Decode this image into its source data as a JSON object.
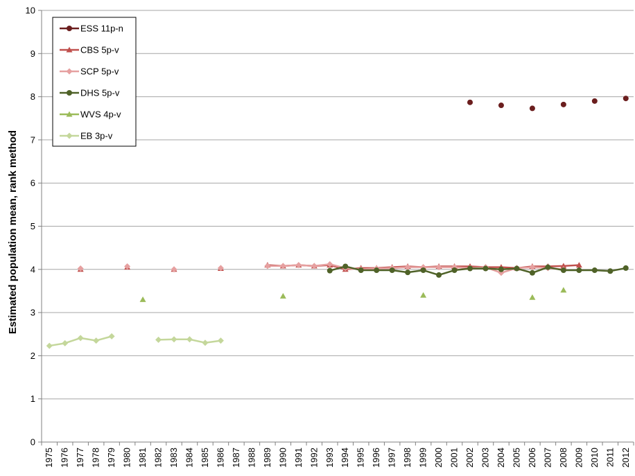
{
  "chart_data": {
    "type": "line",
    "title": "",
    "xlabel": "",
    "ylabel": "Estimated population mean, rank method",
    "ylim": [
      0,
      10
    ],
    "yticks": [
      "0",
      "1",
      "2",
      "3",
      "4",
      "5",
      "6",
      "7",
      "8",
      "9",
      "10"
    ],
    "grid": "horizontal",
    "legend_position": "top-left",
    "categories": [
      "1975",
      "1976",
      "1977",
      "1978",
      "1979",
      "1980",
      "1981",
      "1982",
      "1983",
      "1984",
      "1985",
      "1986",
      "1987",
      "1988",
      "1989",
      "1990",
      "1991",
      "1992",
      "1993",
      "1994",
      "1995",
      "1996",
      "1997",
      "1998",
      "1999",
      "2000",
      "2001",
      "2002",
      "2003",
      "2004",
      "2005",
      "2006",
      "2007",
      "2008",
      "2009",
      "2010",
      "2011",
      "2012"
    ],
    "series": [
      {
        "name": "ESS 11p-n",
        "color": "#6b1e1e",
        "marker": "circle",
        "points": [
          [
            2002,
            7.87
          ],
          [
            2004,
            7.8
          ],
          [
            2006,
            7.73
          ],
          [
            2008,
            7.82
          ],
          [
            2010,
            7.9
          ],
          [
            2012,
            7.96
          ]
        ]
      },
      {
        "name": "CBS 5p-v",
        "color": "#c0504d",
        "marker": "triangle",
        "points": [
          [
            1977,
            4.0
          ],
          [
            1980,
            4.05
          ],
          [
            1983,
            4.0
          ],
          [
            1986,
            4.02
          ],
          [
            1989,
            4.1
          ],
          [
            1990,
            4.08
          ],
          [
            1991,
            4.1
          ],
          [
            1992,
            4.08
          ],
          [
            1993,
            4.1
          ],
          [
            1994,
            4.0
          ],
          [
            1995,
            4.03
          ],
          [
            1996,
            4.03
          ],
          [
            1997,
            4.05
          ],
          [
            1998,
            4.07
          ],
          [
            1999,
            4.05
          ],
          [
            2000,
            4.07
          ],
          [
            2001,
            4.07
          ],
          [
            2002,
            4.07
          ],
          [
            2003,
            4.05
          ],
          [
            2004,
            4.05
          ],
          [
            2005,
            4.03
          ],
          [
            2006,
            4.07
          ],
          [
            2007,
            4.07
          ],
          [
            2008,
            4.08
          ],
          [
            2009,
            4.1
          ]
        ]
      },
      {
        "name": "SCP 5p-v",
        "color": "#e6a0a0",
        "marker": "diamond",
        "points": [
          [
            1977,
            4.02
          ],
          [
            1980,
            4.07
          ],
          [
            1983,
            4.0
          ],
          [
            1986,
            4.03
          ],
          [
            1989,
            4.08
          ],
          [
            1990,
            4.08
          ],
          [
            1991,
            4.1
          ],
          [
            1992,
            4.08
          ],
          [
            1993,
            4.12
          ],
          [
            1994,
            4.03
          ],
          [
            1995,
            4.0
          ],
          [
            1996,
            4.02
          ],
          [
            1997,
            4.03
          ],
          [
            1998,
            4.05
          ],
          [
            1999,
            4.05
          ],
          [
            2000,
            4.05
          ],
          [
            2001,
            4.05
          ],
          [
            2002,
            4.03
          ],
          [
            2003,
            4.05
          ],
          [
            2004,
            3.92
          ],
          [
            2005,
            4.03
          ],
          [
            2006,
            4.05
          ],
          [
            2007,
            4.03
          ],
          [
            2008,
            4.0
          ]
        ]
      },
      {
        "name": "DHS 5p-v",
        "color": "#4f6228",
        "marker": "circle",
        "points": [
          [
            1993,
            3.97
          ],
          [
            1994,
            4.07
          ],
          [
            1995,
            3.98
          ],
          [
            1996,
            3.98
          ],
          [
            1997,
            3.98
          ],
          [
            1998,
            3.93
          ],
          [
            1999,
            3.98
          ],
          [
            2000,
            3.87
          ],
          [
            2001,
            3.98
          ],
          [
            2002,
            4.02
          ],
          [
            2003,
            4.02
          ],
          [
            2004,
            4.0
          ],
          [
            2005,
            4.02
          ],
          [
            2006,
            3.92
          ],
          [
            2007,
            4.05
          ],
          [
            2008,
            3.98
          ],
          [
            2009,
            3.98
          ],
          [
            2010,
            3.98
          ],
          [
            2011,
            3.96
          ],
          [
            2012,
            4.03
          ]
        ]
      },
      {
        "name": "WVS 4p-v",
        "color": "#9bbb59",
        "marker": "triangle",
        "points": [
          [
            1981,
            3.3
          ],
          [
            1990,
            3.38
          ],
          [
            1999,
            3.4
          ],
          [
            2006,
            3.35
          ],
          [
            2008,
            3.52
          ]
        ]
      },
      {
        "name": "EB 3p-v",
        "color": "#c4d79b",
        "marker": "diamond",
        "segments": [
          [
            [
              1975,
              2.23
            ],
            [
              1976,
              2.29
            ],
            [
              1977,
              2.41
            ],
            [
              1978,
              2.35
            ],
            [
              1979,
              2.45
            ]
          ],
          [
            [
              1982,
              2.37
            ],
            [
              1983,
              2.38
            ],
            [
              1984,
              2.38
            ],
            [
              1985,
              2.3
            ],
            [
              1986,
              2.35
            ]
          ]
        ]
      }
    ]
  }
}
